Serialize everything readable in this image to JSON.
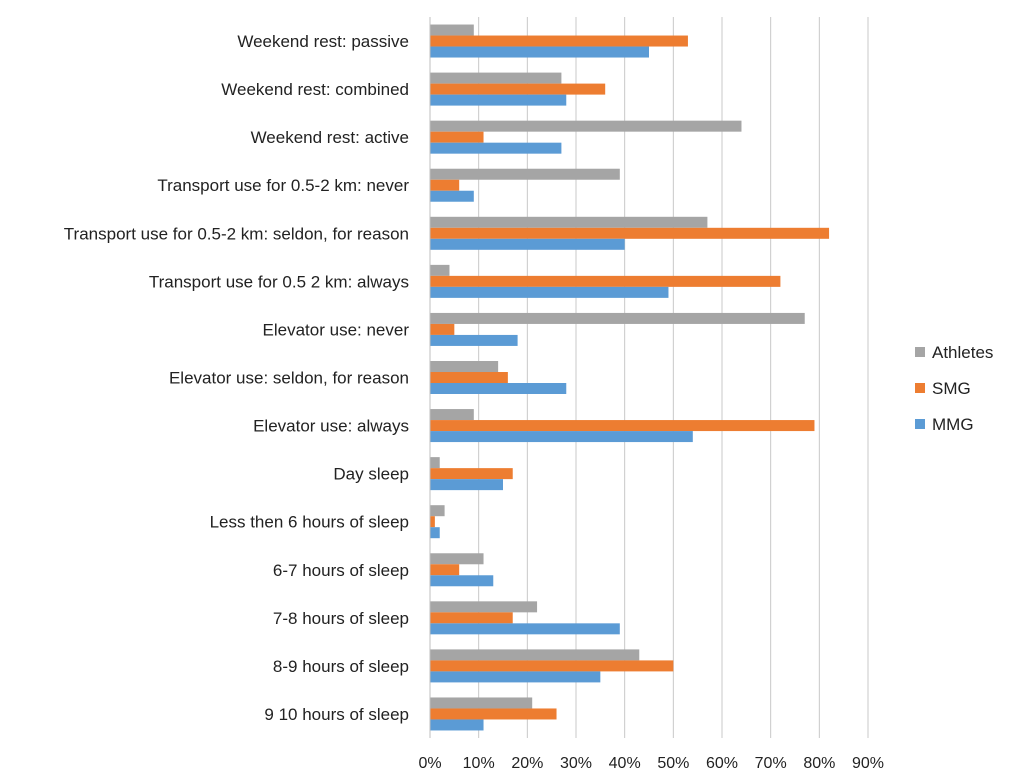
{
  "chart_data": {
    "type": "bar",
    "orientation": "horizontal",
    "categories": [
      "Weekend rest: passive",
      "Weekend rest: combined",
      "Weekend rest: active",
      "Transport use for 0.5-2 km: never",
      "Transport use for 0.5-2 km: seldon, for reason",
      "Transport use for 0.5 2 km: always",
      "Elevator use: never",
      "Elevator use: seldon, for reason",
      "Elevator use: always",
      "Day sleep",
      "Less then 6 hours of sleep",
      "6-7 hours of sleep",
      "7-8 hours of sleep",
      "8-9 hours of sleep",
      "9 10 hours of sleep"
    ],
    "series": [
      {
        "name": "Athletes",
        "color": "#a5a5a5",
        "values": [
          9,
          27,
          64,
          39,
          57,
          4,
          77,
          14,
          9,
          2,
          3,
          11,
          22,
          43,
          21
        ]
      },
      {
        "name": "SMG",
        "color": "#ed7d31",
        "values": [
          53,
          36,
          11,
          6,
          82,
          72,
          5,
          16,
          79,
          17,
          1,
          6,
          17,
          50,
          26
        ]
      },
      {
        "name": "MMG",
        "color": "#5b9bd5",
        "values": [
          45,
          28,
          27,
          9,
          40,
          49,
          18,
          28,
          54,
          15,
          2,
          13,
          39,
          35,
          11
        ]
      }
    ],
    "xlim": [
      0,
      90
    ],
    "xticks": [
      "0%",
      "10%",
      "20%",
      "30%",
      "40%",
      "50%",
      "60%",
      "70%",
      "80%",
      "90%"
    ],
    "grid": "vertical",
    "legend": "right",
    "legend_order": [
      "Athletes",
      "SMG",
      "MMG"
    ]
  }
}
